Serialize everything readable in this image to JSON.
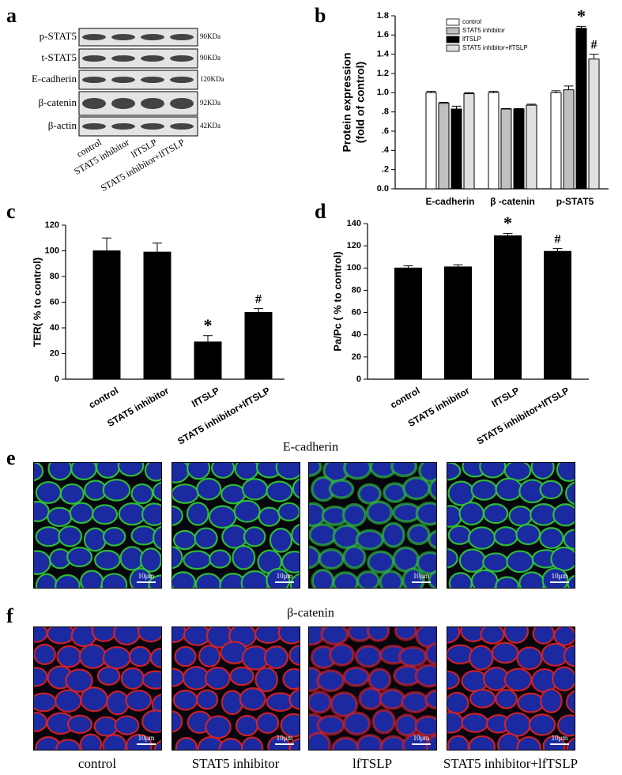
{
  "panel_letters": [
    "a",
    "b",
    "c",
    "d",
    "e",
    "f"
  ],
  "blot": {
    "proteins": [
      "p-STAT5",
      "t-STAT5",
      "E-cadherin",
      "β-catenin",
      "β-actin"
    ],
    "sizes": [
      "90KDa",
      "90KDa",
      "120KDa",
      "92KDa",
      "42KDa"
    ],
    "lanes": [
      "control",
      "STAT5 inhibitor",
      "lfTSLP",
      "STAT5 inhibitor+lfTSLP"
    ]
  },
  "chart_data": [
    {
      "type": "bar",
      "ylabel": [
        "Protein expression",
        "(fold of control)"
      ],
      "categories": [
        "E-cadherin",
        "β -catenin",
        "p-STAT5"
      ],
      "series": [
        {
          "name": "control",
          "color": "#ffffff",
          "values": [
            1.0,
            1.0,
            1.0
          ],
          "errors": [
            0.015,
            0.015,
            0.02
          ]
        },
        {
          "name": "STAT5 inhibitor",
          "color": "#c0c0c0",
          "values": [
            0.89,
            0.83,
            1.03
          ],
          "errors": [
            0.01,
            0.005,
            0.04
          ]
        },
        {
          "name": "lfTSLP",
          "color": "#000000",
          "values": [
            0.83,
            0.83,
            1.67
          ],
          "errors": [
            0.03,
            0.005,
            0.02
          ],
          "annotations": [
            null,
            null,
            "*"
          ]
        },
        {
          "name": "STAT5 inhibitor+lfTSLP",
          "color": "#e0e0e0",
          "values": [
            0.99,
            0.87,
            1.35
          ],
          "errors": [
            0.01,
            0.01,
            0.05
          ],
          "annotations": [
            null,
            null,
            "#"
          ]
        }
      ],
      "ylim": [
        0,
        1.8
      ],
      "yticks": [
        {
          "value": 0,
          "label": "0.0"
        },
        {
          "value": 0.2,
          "label": ".2"
        },
        {
          "value": 0.4,
          "label": ".4"
        },
        {
          "value": 0.6,
          "label": ".6"
        },
        {
          "value": 0.8,
          "label": ".8"
        },
        {
          "value": 1,
          "label": "1.0"
        },
        1.2,
        1.4,
        1.6,
        1.8
      ],
      "legend": "top"
    },
    {
      "type": "bar",
      "ylabel": "TER( %  to  control)",
      "categories": [
        "control",
        "STAT5 inhibitor",
        "lfTSLP",
        "STAT5 inhibitor+lfTSLP"
      ],
      "values": [
        100,
        99,
        29,
        52
      ],
      "errors": [
        10,
        7,
        5,
        3
      ],
      "annotations": [
        null,
        null,
        "*",
        "#"
      ],
      "color": "#000000",
      "ylim": [
        0,
        120
      ],
      "yticks": [
        0,
        20,
        40,
        60,
        80,
        100,
        120
      ]
    },
    {
      "type": "bar",
      "ylabel": "Pa/Pc ( %  to  control)",
      "categories": [
        "control",
        "STAT5 inhibitor",
        "lfTSLP",
        "STAT5 inhibitor+lfTSLP"
      ],
      "values": [
        100,
        101,
        129,
        115
      ],
      "errors": [
        2,
        2,
        2,
        2.5
      ],
      "annotations": [
        null,
        null,
        "*",
        "#"
      ],
      "color": "#000000",
      "ylim": [
        0,
        140
      ],
      "yticks": [
        0,
        20,
        40,
        60,
        80,
        100,
        120,
        140
      ]
    }
  ],
  "images": {
    "e": {
      "title": "E-cadherin"
    },
    "f": {
      "title": "β-catenin"
    },
    "scale_bar": "10μm",
    "conditions": [
      "control",
      "STAT5 inhibitor",
      "lfTSLP",
      "STAT5 inhibitor+lfTSLP"
    ]
  }
}
